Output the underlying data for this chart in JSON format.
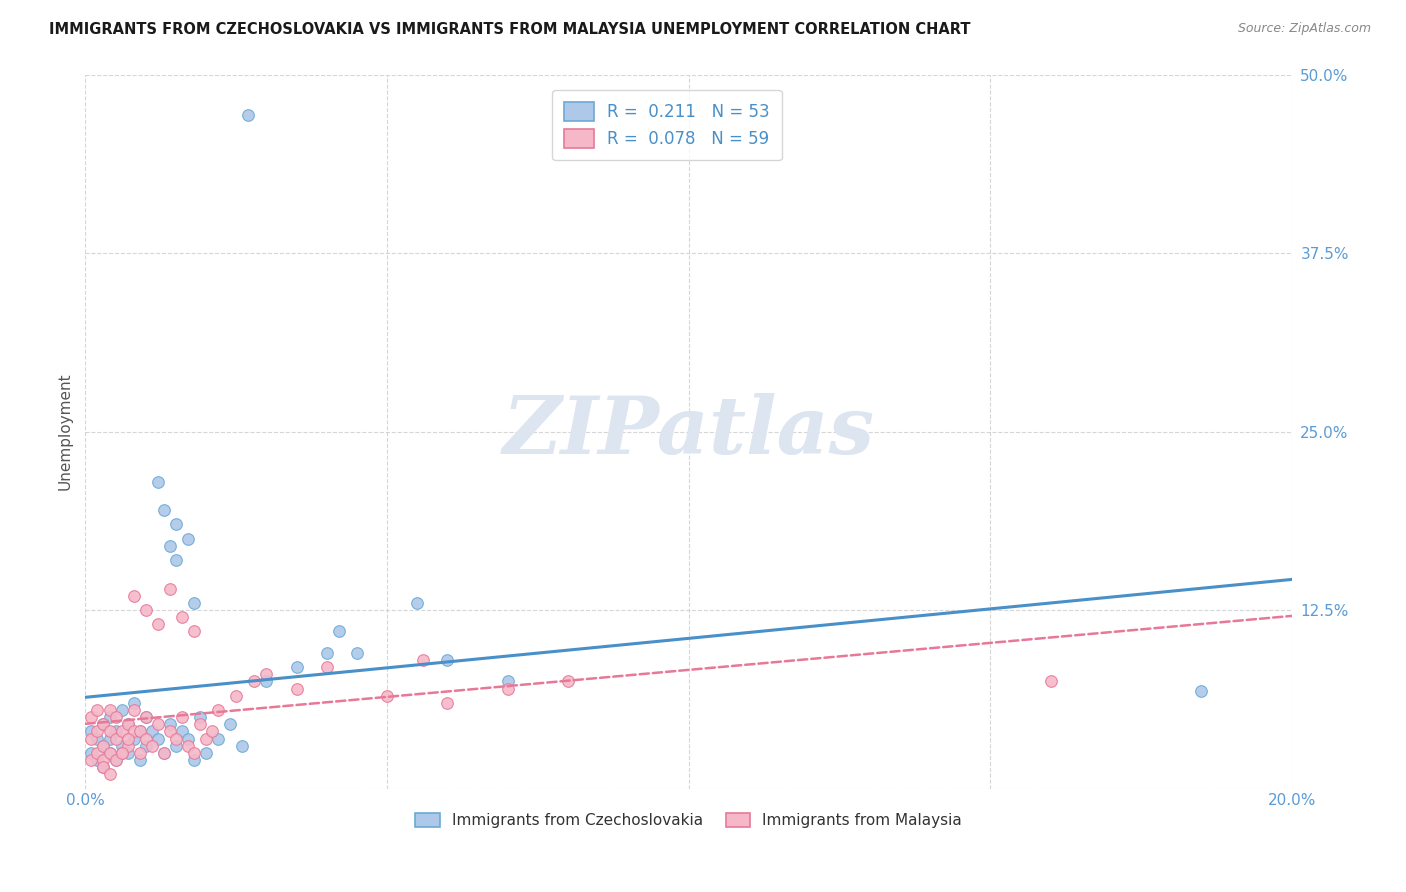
{
  "title": "IMMIGRANTS FROM CZECHOSLOVAKIA VS IMMIGRANTS FROM MALAYSIA UNEMPLOYMENT CORRELATION CHART",
  "source": "Source: ZipAtlas.com",
  "ylabel": "Unemployment",
  "xlim": [
    0.0,
    0.2
  ],
  "ylim": [
    0.0,
    0.5
  ],
  "xticks": [
    0.0,
    0.05,
    0.1,
    0.15,
    0.2
  ],
  "xtick_labels": [
    "0.0%",
    "",
    "",
    "",
    "20.0%"
  ],
  "yticks": [
    0.0,
    0.125,
    0.25,
    0.375,
    0.5
  ],
  "ytick_labels": [
    "",
    "12.5%",
    "25.0%",
    "37.5%",
    "50.0%"
  ],
  "R_czech": 0.211,
  "N_czech": 53,
  "R_malaysia": 0.078,
  "N_malaysia": 59,
  "color_czech": "#adc8e8",
  "color_malaysia": "#f5b8c8",
  "edge_czech": "#6aaad4",
  "edge_malaysia": "#e87898",
  "line_color_czech": "#4a90c8",
  "line_color_malaysia": "#e87898",
  "watermark_color": "#dde5f0",
  "title_color": "#1a1a1a",
  "source_color": "#888888",
  "ylabel_color": "#555555",
  "tick_color": "#5b9bd5",
  "grid_color": "#cccccc",
  "legend_edge_color": "#cccccc",
  "bottom_legend_color": "#333333"
}
